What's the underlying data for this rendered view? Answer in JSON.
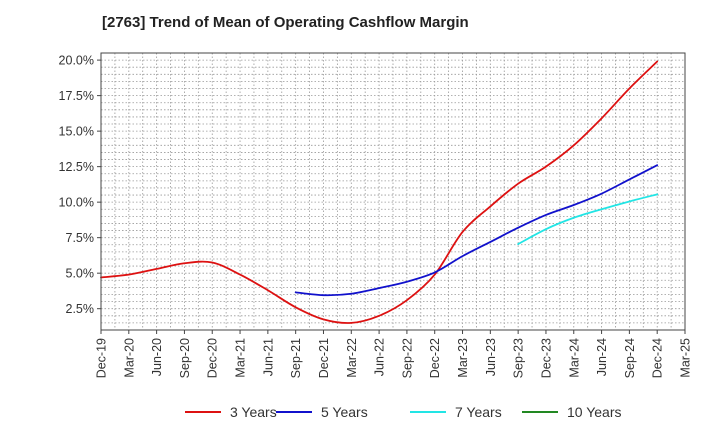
{
  "chart_data": {
    "type": "line",
    "title": "[2763]  Trend of Mean of Operating Cashflow Margin",
    "xlabel": "",
    "ylabel": "",
    "ylim": [
      1.0,
      20.5
    ],
    "yticks": [
      2.5,
      5.0,
      7.5,
      10.0,
      12.5,
      15.0,
      17.5,
      20.0
    ],
    "ytick_labels": [
      "2.5%",
      "5.0%",
      "7.5%",
      "10.0%",
      "12.5%",
      "15.0%",
      "17.5%",
      "20.0%"
    ],
    "categories": [
      "Dec-19",
      "Mar-20",
      "Jun-20",
      "Sep-20",
      "Dec-20",
      "Mar-21",
      "Jun-21",
      "Sep-21",
      "Dec-21",
      "Mar-22",
      "Jun-22",
      "Sep-22",
      "Dec-22",
      "Mar-23",
      "Jun-23",
      "Sep-23",
      "Dec-23",
      "Mar-24",
      "Jun-24",
      "Sep-24",
      "Dec-24",
      "Mar-25"
    ],
    "grid": true,
    "legend_position": "bottom",
    "series": [
      {
        "name": "3 Years",
        "color": "#dd1111",
        "values": [
          4.7,
          4.9,
          5.3,
          5.7,
          5.75,
          4.9,
          3.8,
          2.6,
          1.75,
          1.5,
          2.0,
          3.1,
          4.9,
          7.9,
          9.7,
          11.3,
          12.5,
          14.0,
          15.9,
          18.0,
          19.9,
          null
        ]
      },
      {
        "name": "5 Years",
        "color": "#1111cc",
        "values": [
          null,
          null,
          null,
          null,
          null,
          null,
          null,
          3.65,
          3.45,
          3.55,
          3.95,
          4.4,
          5.05,
          6.2,
          7.2,
          8.2,
          9.1,
          9.8,
          10.6,
          11.6,
          12.6,
          null
        ]
      },
      {
        "name": "7 Years",
        "color": "#22e5e5",
        "values": [
          null,
          null,
          null,
          null,
          null,
          null,
          null,
          null,
          null,
          null,
          null,
          null,
          null,
          null,
          null,
          7.05,
          8.1,
          8.9,
          9.5,
          10.05,
          10.55,
          null
        ]
      },
      {
        "name": "10 Years",
        "color": "#228822",
        "values": [
          null,
          null,
          null,
          null,
          null,
          null,
          null,
          null,
          null,
          null,
          null,
          null,
          null,
          null,
          null,
          null,
          null,
          null,
          null,
          null,
          null,
          null
        ]
      }
    ]
  }
}
